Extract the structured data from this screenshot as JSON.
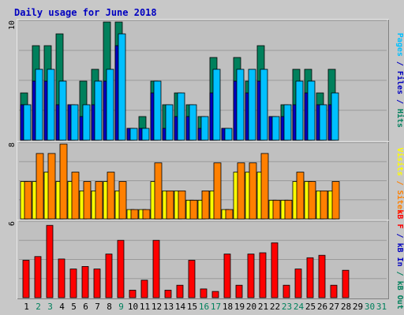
{
  "colors": {
    "background": "#c8c8c8",
    "panel": "#c0c0c0",
    "gridline": "#9a9a9a",
    "title": "#0000c0",
    "hits": "#00805c",
    "files": "#0000c0",
    "pages": "#00c0ff",
    "visits": "#ffff00",
    "sites": "#ff8000",
    "kb_in": "#0000c0",
    "kb_out": "#00805c",
    "kb_f": "#ff0000",
    "weekday_label": "#000000",
    "weekend_label": "#00805c"
  },
  "chart_data": {
    "type": "bar",
    "title": "Daily usage for June 2018",
    "categories": [
      "1",
      "2",
      "3",
      "4",
      "5",
      "6",
      "7",
      "8",
      "9",
      "10",
      "11",
      "12",
      "13",
      "14",
      "15",
      "16",
      "17",
      "18",
      "19",
      "20",
      "21",
      "22",
      "23",
      "24",
      "25",
      "26",
      "27",
      "28",
      "29",
      "30",
      "31"
    ],
    "weekend_days": [
      "2",
      "3",
      "9",
      "16",
      "17",
      "23",
      "24",
      "30",
      "31"
    ],
    "panels": [
      {
        "id": "hits",
        "ymax_label": "10",
        "ylim": [
          0,
          10
        ],
        "side_label": [
          {
            "text": "Pages",
            "color_key": "pages"
          },
          {
            "text": " / ",
            "color_key": "files"
          },
          {
            "text": "Files",
            "color_key": "files"
          },
          {
            "text": " / ",
            "color_key": "files"
          },
          {
            "text": "Hits",
            "color_key": "hits"
          }
        ],
        "series": [
          {
            "name": "Hits",
            "color_key": "hits",
            "values": [
              4,
              8,
              8,
              9,
              3,
              5,
              6,
              10,
              10,
              1,
              2,
              5,
              3,
              4,
              3,
              2,
              7,
              1,
              7,
              5,
              8,
              2,
              3,
              6,
              6,
              4,
              6,
              0,
              0,
              0,
              0
            ]
          },
          {
            "name": "Files",
            "color_key": "files",
            "values": [
              3,
              5,
              5,
              3,
              3,
              2,
              3,
              5,
              8,
              1,
              1,
              4,
              1,
              2,
              2,
              1,
              4,
              1,
              5,
              4,
              5,
              2,
              2,
              3,
              4,
              3,
              3,
              0,
              0,
              0,
              0
            ]
          },
          {
            "name": "Pages",
            "color_key": "pages",
            "values": [
              3,
              6,
              6,
              5,
              3,
              3,
              5,
              6,
              9,
              1,
              1,
              5,
              3,
              4,
              3,
              2,
              6,
              1,
              6,
              6,
              6,
              2,
              3,
              5,
              5,
              3,
              4,
              0,
              0,
              0,
              0
            ]
          }
        ]
      },
      {
        "id": "visits",
        "ymax_label": "8",
        "ylim": [
          0,
          8
        ],
        "side_label": [
          {
            "text": "Visits",
            "color_key": "visits"
          },
          {
            "text": " / ",
            "color_key": "sites"
          },
          {
            "text": "Sites",
            "color_key": "sites"
          }
        ],
        "series": [
          {
            "name": "Visits",
            "color_key": "visits",
            "values": [
              4,
              4,
              5,
              4,
              4,
              3,
              3,
              4,
              3,
              1,
              1,
              4,
              3,
              3,
              2,
              2,
              3,
              1,
              5,
              5,
              5,
              2,
              2,
              4,
              4,
              3,
              3,
              0,
              0,
              0,
              0
            ]
          },
          {
            "name": "Sites",
            "color_key": "sites",
            "values": [
              4,
              7,
              7,
              8,
              5,
              4,
              4,
              5,
              4,
              1,
              1,
              6,
              3,
              3,
              2,
              3,
              6,
              1,
              6,
              6,
              7,
              2,
              2,
              5,
              4,
              3,
              4,
              0,
              0,
              0,
              0
            ]
          }
        ]
      },
      {
        "id": "kbytes",
        "ymax_label": "6",
        "ylim": [
          0,
          6
        ],
        "side_label": [
          {
            "text": "kB F",
            "color_key": "kb_f"
          },
          {
            "text": " / ",
            "color_key": "kb_in"
          },
          {
            "text": "kB In",
            "color_key": "kb_in"
          },
          {
            "text": " / ",
            "color_key": "kb_out"
          },
          {
            "text": "kB Out",
            "color_key": "kb_out"
          }
        ],
        "series": [
          {
            "name": "kB F",
            "color_key": "kb_f",
            "values": [
              3.0,
              3.3,
              5.8,
              3.1,
              2.3,
              2.5,
              2.3,
              3.5,
              4.6,
              0.6,
              1.4,
              4.6,
              0.6,
              1.0,
              3.0,
              0.7,
              0.5,
              3.5,
              1.0,
              3.5,
              3.6,
              4.4,
              1.0,
              2.3,
              3.2,
              3.4,
              1.0,
              2.2,
              0,
              0,
              0
            ]
          }
        ]
      }
    ]
  }
}
